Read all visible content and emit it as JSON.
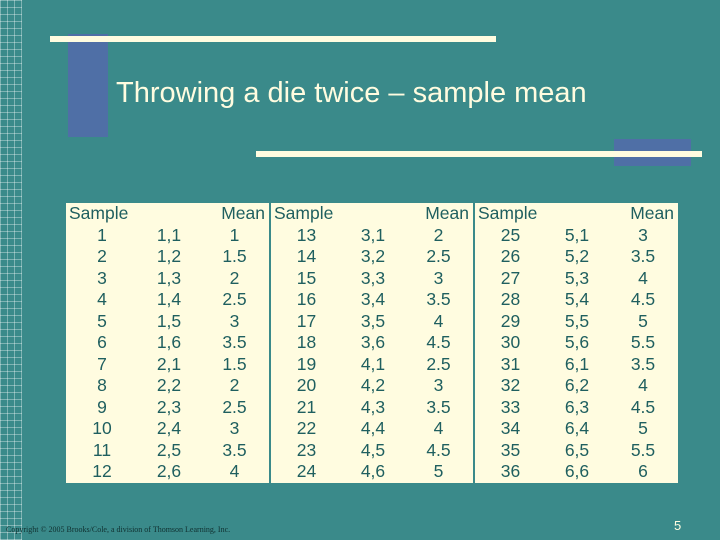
{
  "slide": {
    "title": "Throwing a die twice – sample mean",
    "copyright": "Copyright © 2005 Brooks/Cole, a division of Thomson Learning, Inc.",
    "page_number": "5"
  },
  "table": {
    "headers": [
      "Sample",
      "Mean",
      "Sample",
      "Mean",
      "Sample",
      "Mean"
    ],
    "rows": [
      [
        "1",
        "1,1",
        "1",
        "13",
        "3,1",
        "2",
        "25",
        "5,1",
        "3"
      ],
      [
        "2",
        "1,2",
        "1.5",
        "14",
        "3,2",
        "2.5",
        "26",
        "5,2",
        "3.5"
      ],
      [
        "3",
        "1,3",
        "2",
        "15",
        "3,3",
        "3",
        "27",
        "5,3",
        "4"
      ],
      [
        "4",
        "1,4",
        "2.5",
        "16",
        "3,4",
        "3.5",
        "28",
        "5,4",
        "4.5"
      ],
      [
        "5",
        "1,5",
        "3",
        "17",
        "3,5",
        "4",
        "29",
        "5,5",
        "5"
      ],
      [
        "6",
        "1,6",
        "3.5",
        "18",
        "3,6",
        "4.5",
        "30",
        "5,6",
        "5.5"
      ],
      [
        "7",
        "2,1",
        "1.5",
        "19",
        "4,1",
        "2.5",
        "31",
        "6,1",
        "3.5"
      ],
      [
        "8",
        "2,2",
        "2",
        "20",
        "4,2",
        "3",
        "32",
        "6,2",
        "4"
      ],
      [
        "9",
        "2,3",
        "2.5",
        "21",
        "4,3",
        "3.5",
        "33",
        "6,3",
        "4.5"
      ],
      [
        "10",
        "2,4",
        "3",
        "22",
        "4,4",
        "4",
        "34",
        "6,4",
        "5"
      ],
      [
        "11",
        "2,5",
        "3.5",
        "23",
        "4,5",
        "4.5",
        "35",
        "6,5",
        "5.5"
      ],
      [
        "12",
        "2,6",
        "4",
        "24",
        "4,6",
        "5",
        "36",
        "6,6",
        "6"
      ]
    ]
  },
  "colors": {
    "background": "#3a8a8a",
    "accent_blue": "#4f6fa6",
    "cream": "#fffce0",
    "table_text": "#1f5f5f"
  }
}
